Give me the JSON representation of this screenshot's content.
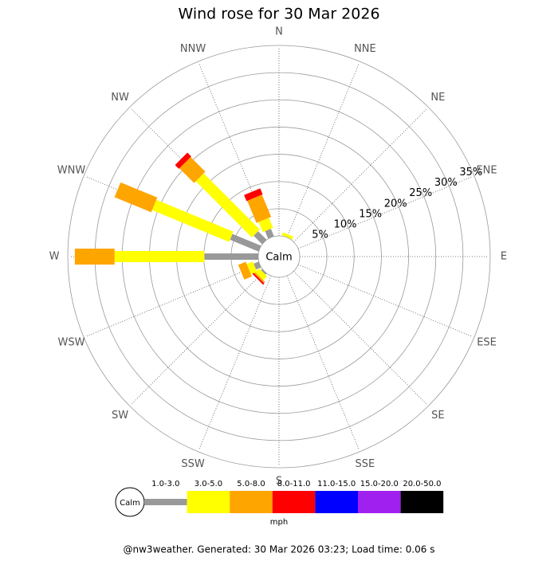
{
  "chart_data": {
    "type": "windrose",
    "title": "Wind rose for 30 Mar 2026",
    "calm_label": "Calm",
    "categories": [
      "N",
      "NNE",
      "NE",
      "ENE",
      "E",
      "ESE",
      "SE",
      "SSE",
      "S",
      "SSW",
      "SW",
      "WSW",
      "W",
      "WNW",
      "NW",
      "NNW"
    ],
    "series": [
      {
        "name": "1.0-3.0",
        "color": "#999999",
        "values": [
          0,
          0,
          0,
          0,
          0,
          0,
          0,
          0,
          0,
          0,
          0.3,
          1.0,
          9.9,
          5.7,
          2.2,
          1.5
        ]
      },
      {
        "name": "3.0-5.0",
        "color": "#ffff00",
        "values": [
          0,
          0.6,
          0,
          0,
          0,
          0,
          0,
          0,
          0,
          0,
          1.0,
          1.2,
          16.5,
          15.3,
          14.6,
          2.0
        ]
      },
      {
        "name": "5.0-8.0",
        "color": "#ffa500",
        "values": [
          0,
          0,
          0,
          0,
          0,
          0,
          0,
          0,
          0,
          0,
          0.3,
          1.5,
          7.3,
          7.3,
          3.8,
          4.4
        ]
      },
      {
        "name": "8.0-11.0",
        "color": "#ff0000",
        "values": [
          0,
          0,
          0,
          0,
          0,
          0,
          0,
          0,
          0,
          0,
          0.3,
          0,
          0,
          0,
          1.0,
          1.2
        ]
      },
      {
        "name": "11.0-15.0",
        "color": "#0000ff",
        "values": [
          0,
          0,
          0,
          0,
          0,
          0,
          0,
          0,
          0,
          0,
          0,
          0,
          0,
          0,
          0,
          0
        ]
      },
      {
        "name": "15.0-20.0",
        "color": "#a020f0",
        "values": [
          0,
          0,
          0,
          0,
          0,
          0,
          0,
          0,
          0,
          0,
          0,
          0,
          0,
          0,
          0,
          0
        ]
      },
      {
        "name": "20.0-50.0",
        "color": "#000000",
        "values": [
          0,
          0,
          0,
          0,
          0,
          0,
          0,
          0,
          0,
          0,
          0,
          0,
          0,
          0,
          0,
          0
        ]
      }
    ],
    "rlim": [
      0,
      35
    ],
    "rticks": [
      {
        "value": 5,
        "label": "5%"
      },
      {
        "value": 10,
        "label": "10%"
      },
      {
        "value": 15,
        "label": "15%"
      },
      {
        "value": 20,
        "label": "20%"
      },
      {
        "value": 25,
        "label": "25%"
      },
      {
        "value": 30,
        "label": "30%"
      },
      {
        "value": 35,
        "label": "35%"
      }
    ],
    "legend_unit": "mph",
    "footer": "@nw3weather.  Generated: 30 Mar 2026 03:23; Load time: 0.06 s"
  }
}
